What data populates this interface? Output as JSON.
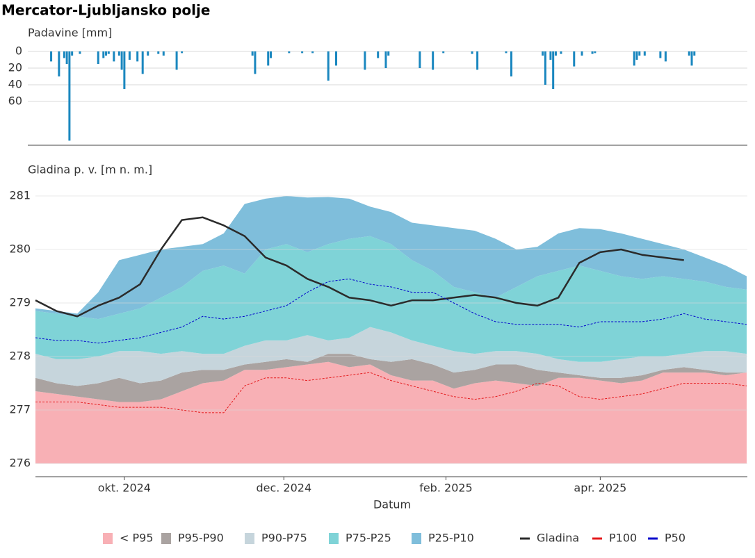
{
  "chart_data": [
    {
      "type": "bar",
      "title": "Mercator-Ljubljansko polje",
      "y_label": "Padavine [mm]",
      "color": "#1a87bf",
      "y_reversed": true,
      "xlim": [
        0,
        272
      ],
      "ylim": [
        0,
        112.5
      ],
      "yticks": [
        0,
        20,
        40,
        60
      ],
      "grid": true,
      "x": [
        6,
        9,
        11,
        12,
        13,
        14,
        17,
        24,
        26,
        27,
        28,
        30,
        32,
        33,
        34,
        36,
        39,
        41,
        43,
        47,
        49,
        54,
        56,
        83,
        84,
        89,
        90,
        97,
        102,
        106,
        112,
        115,
        126,
        131,
        134,
        135,
        147,
        152,
        156,
        167,
        169,
        180,
        182,
        194,
        195,
        197,
        198,
        199,
        201,
        206,
        209,
        213,
        214,
        229,
        230,
        231,
        233,
        239,
        241,
        250,
        251,
        252
      ],
      "values": [
        12,
        30,
        8,
        15,
        107,
        5,
        3,
        15,
        8,
        5,
        3,
        12,
        5,
        22,
        45,
        10,
        12,
        27,
        5,
        3,
        5,
        22,
        2,
        5,
        27,
        17,
        8,
        2,
        2,
        2,
        35,
        17,
        22,
        8,
        20,
        5,
        20,
        22,
        2,
        3,
        22,
        2,
        30,
        5,
        40,
        10,
        45,
        5,
        3,
        18,
        5,
        3,
        2,
        17,
        10,
        5,
        5,
        8,
        12,
        5,
        17,
        5
      ]
    },
    {
      "type": "area",
      "y_label": "Gladina p. v. [m n. m.]",
      "x_label": "Datum",
      "xlim": [
        0,
        272
      ],
      "ylim": [
        276,
        281.3
      ],
      "yticks": [
        276,
        277,
        278,
        279,
        280,
        281
      ],
      "grid": true,
      "xticks": [
        {
          "value": 34,
          "label": "okt. 2024"
        },
        {
          "value": 95,
          "label": "dec. 2024"
        },
        {
          "value": 157,
          "label": "feb. 2025"
        },
        {
          "value": 216,
          "label": "apr. 2025"
        }
      ],
      "x": [
        0,
        8,
        16,
        24,
        32,
        40,
        48,
        56,
        64,
        72,
        80,
        88,
        96,
        104,
        112,
        120,
        128,
        136,
        144,
        152,
        160,
        168,
        176,
        184,
        192,
        200,
        208,
        216,
        224,
        232,
        240,
        248,
        256,
        264,
        272
      ],
      "series": [
        {
          "name": "< P95",
          "kind": "band",
          "color": "#f8b0b5",
          "values": [
            277.35,
            277.3,
            277.25,
            277.2,
            277.15,
            277.15,
            277.2,
            277.35,
            277.5,
            277.55,
            277.75,
            277.75,
            277.8,
            277.85,
            277.9,
            277.8,
            277.85,
            277.65,
            277.55,
            277.55,
            277.4,
            277.5,
            277.55,
            277.5,
            277.45,
            277.6,
            277.6,
            277.55,
            277.5,
            277.55,
            277.7,
            277.7,
            277.7,
            277.65,
            277.7
          ]
        },
        {
          "name": "P95-P90",
          "kind": "band",
          "color": "#aaa3a1",
          "values": [
            277.6,
            277.5,
            277.45,
            277.5,
            277.6,
            277.5,
            277.55,
            277.7,
            277.75,
            277.75,
            277.85,
            277.9,
            277.95,
            277.9,
            278.05,
            278.05,
            277.95,
            277.9,
            277.95,
            277.85,
            277.7,
            277.75,
            277.85,
            277.85,
            277.75,
            277.7,
            277.65,
            277.6,
            277.6,
            277.65,
            277.75,
            277.8,
            277.75,
            277.7,
            277.7
          ]
        },
        {
          "name": "P90-P75",
          "kind": "band",
          "color": "#c6d5dc",
          "values": [
            278.05,
            277.95,
            277.95,
            278.0,
            278.1,
            278.1,
            278.05,
            278.1,
            278.05,
            278.05,
            278.2,
            278.3,
            278.3,
            278.4,
            278.3,
            278.35,
            278.55,
            278.45,
            278.3,
            278.2,
            278.1,
            278.05,
            278.1,
            278.1,
            278.05,
            277.95,
            277.9,
            277.9,
            277.95,
            278.0,
            278.0,
            278.05,
            278.1,
            278.1,
            278.05
          ]
        },
        {
          "name": "P75-P25",
          "kind": "band",
          "color": "#7fd3d7",
          "values": [
            278.85,
            278.8,
            278.75,
            278.7,
            278.8,
            278.9,
            279.1,
            279.3,
            279.6,
            279.7,
            279.55,
            280.0,
            280.1,
            279.95,
            280.1,
            280.2,
            280.25,
            280.1,
            279.8,
            279.6,
            279.3,
            279.2,
            279.1,
            279.3,
            279.5,
            279.6,
            279.7,
            279.6,
            279.5,
            279.45,
            279.5,
            279.45,
            279.4,
            279.3,
            279.25
          ]
        },
        {
          "name": "P25-P10",
          "kind": "band",
          "color": "#7fbedb",
          "values": [
            278.9,
            278.85,
            278.8,
            279.2,
            279.8,
            279.9,
            280.0,
            280.05,
            280.1,
            280.3,
            280.85,
            280.95,
            281.0,
            280.97,
            280.98,
            280.95,
            280.8,
            280.7,
            280.5,
            280.45,
            280.4,
            280.35,
            280.2,
            280.0,
            280.05,
            280.3,
            280.4,
            280.38,
            280.3,
            280.2,
            280.1,
            280.0,
            279.85,
            279.7,
            279.5
          ]
        },
        {
          "name": "Gladina",
          "kind": "line",
          "dash": false,
          "color": "#2b2b2b",
          "values": [
            279.05,
            278.85,
            278.75,
            278.95,
            279.1,
            279.35,
            280.0,
            280.55,
            280.6,
            280.45,
            280.25,
            279.85,
            279.7,
            279.45,
            279.3,
            279.1,
            279.05,
            278.95,
            279.05,
            279.05,
            279.1,
            279.15,
            279.1,
            279.0,
            278.95,
            279.1,
            279.75,
            279.95,
            280.0,
            279.9,
            279.85,
            279.8,
            null,
            null,
            null
          ]
        },
        {
          "name": "P100",
          "kind": "line",
          "dash": true,
          "color": "#e41a1c",
          "values": [
            277.15,
            277.15,
            277.15,
            277.1,
            277.05,
            277.05,
            277.05,
            277.0,
            276.95,
            276.95,
            277.45,
            277.6,
            277.6,
            277.55,
            277.6,
            277.65,
            277.7,
            277.55,
            277.45,
            277.35,
            277.25,
            277.2,
            277.25,
            277.35,
            277.5,
            277.45,
            277.25,
            277.2,
            277.25,
            277.3,
            277.4,
            277.5,
            277.5,
            277.5,
            277.45
          ]
        },
        {
          "name": "P50",
          "kind": "line",
          "dash": true,
          "color": "#0000cc",
          "values": [
            278.35,
            278.3,
            278.3,
            278.25,
            278.3,
            278.35,
            278.45,
            278.55,
            278.75,
            278.7,
            278.75,
            278.85,
            278.95,
            279.2,
            279.4,
            279.45,
            279.35,
            279.3,
            279.2,
            279.2,
            279.0,
            278.8,
            278.65,
            278.6,
            278.6,
            278.6,
            278.55,
            278.65,
            278.65,
            278.65,
            278.7,
            278.8,
            278.7,
            278.65,
            278.6
          ]
        }
      ]
    }
  ]
}
